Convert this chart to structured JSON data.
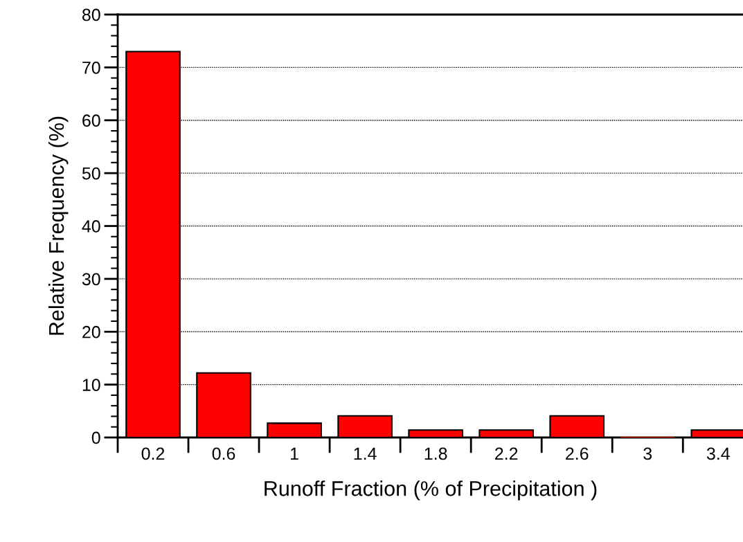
{
  "chart_data": {
    "type": "bar",
    "xlabel": "Runoff Fraction (% of Precipitation )",
    "ylabel": "Relative Frequency (%)",
    "categories": [
      "0.2",
      "0.6",
      "1",
      "1.4",
      "1.8",
      "2.2",
      "2.6",
      "3",
      "3.4"
    ],
    "values": [
      73,
      12.2,
      2.7,
      4.1,
      1.4,
      1.4,
      4.1,
      0,
      1.4
    ],
    "color": "#ff0000",
    "ylim": [
      0,
      80
    ],
    "yticks": [
      0,
      10,
      20,
      30,
      40,
      50,
      60,
      70,
      80
    ],
    "grid": "y",
    "legend": false
  }
}
